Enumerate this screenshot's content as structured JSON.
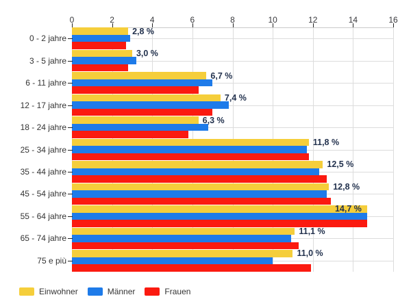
{
  "chart_data": {
    "type": "bar",
    "orientation": "horizontal",
    "title": "",
    "categories": [
      "0 - 2 jahre",
      "3 - 5 jahre",
      "6 - 11 jahre",
      "12 - 17 jahre",
      "18 - 24 jahre",
      "25 - 34 jahre",
      "35 - 44 jahre",
      "45 - 54 jahre",
      "55 - 64 jahre",
      "65 - 74 jahre",
      "75 e più"
    ],
    "series": [
      {
        "name": "Einwohner",
        "color": "#F5CE3B",
        "values": [
          2.8,
          3.0,
          6.7,
          7.4,
          6.3,
          11.8,
          12.5,
          12.8,
          14.7,
          11.1,
          11.0
        ]
      },
      {
        "name": "Männer",
        "color": "#1E7BE9",
        "values": [
          2.9,
          3.2,
          7.0,
          7.8,
          6.8,
          11.7,
          12.3,
          12.7,
          14.7,
          10.9,
          10.0
        ]
      },
      {
        "name": "Frauen",
        "color": "#FB1A10",
        "values": [
          2.7,
          2.8,
          6.3,
          7.0,
          5.8,
          11.8,
          12.7,
          12.9,
          14.7,
          11.3,
          11.9
        ]
      }
    ],
    "value_labels": [
      "2,8 %",
      "3,0 %",
      "6,7 %",
      "7,4 %",
      "6,3 %",
      "11,8 %",
      "12,5 %",
      "12,8 %",
      "14,7 %",
      "11,1 %",
      "11,0 %"
    ],
    "value_labels_for_series": "Einwohner",
    "value_label_color": "#23324e",
    "xlabel": "",
    "ylabel": "",
    "xlim": [
      0,
      16
    ],
    "x_tick_labels": [
      "0",
      "2",
      "4",
      "6",
      "8",
      "10",
      "12",
      "14",
      "16"
    ],
    "x_tick_values": [
      0,
      2,
      4,
      6,
      8,
      10,
      12,
      14,
      16
    ],
    "grid": true,
    "gridline_color": "#dcdcdc",
    "background_color": "#ffffff",
    "legend_position": "bottom-left",
    "legend": [
      "Einwohner",
      "Männer",
      "Frauen"
    ]
  }
}
